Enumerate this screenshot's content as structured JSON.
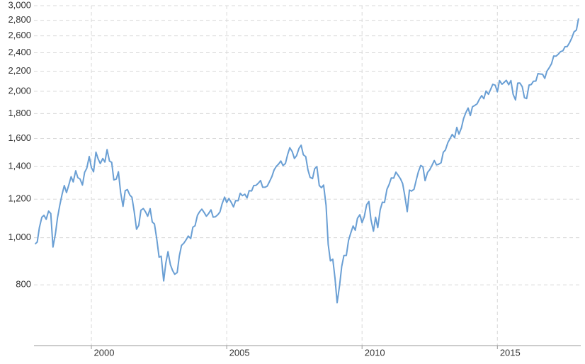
{
  "chart_data": {
    "type": "line",
    "log_scale": true,
    "grid": true,
    "xlim": [
      1997.88,
      2018.08
    ],
    "xticks": [
      2000,
      2005,
      2010,
      2015
    ],
    "ylim": [
      600,
      3000
    ],
    "yticks": [
      800,
      {
        "value": 1000,
        "label": "1,000"
      },
      {
        "value": 1200,
        "label": "1,200"
      },
      {
        "value": 1400,
        "label": "1,400"
      },
      {
        "value": 1600,
        "label": "1,600"
      },
      {
        "value": 1800,
        "label": "1,800"
      },
      {
        "value": 2000,
        "label": "2,000"
      },
      {
        "value": 2200,
        "label": "2,200"
      },
      {
        "value": 2400,
        "label": "2,400"
      },
      {
        "value": 2600,
        "label": "2,600"
      },
      {
        "value": 2800,
        "label": "2,800"
      },
      {
        "value": 3000,
        "label": "3,000"
      }
    ],
    "x": [
      1997.92,
      1998,
      1998.08,
      1998.17,
      1998.25,
      1998.33,
      1998.42,
      1998.5,
      1998.58,
      1998.67,
      1998.75,
      1998.83,
      1998.92,
      1999,
      1999.08,
      1999.17,
      1999.25,
      1999.33,
      1999.42,
      1999.5,
      1999.58,
      1999.67,
      1999.75,
      1999.83,
      1999.92,
      2000,
      2000.08,
      2000.17,
      2000.25,
      2000.33,
      2000.42,
      2000.5,
      2000.58,
      2000.67,
      2000.75,
      2000.83,
      2000.92,
      2001,
      2001.08,
      2001.17,
      2001.25,
      2001.33,
      2001.42,
      2001.5,
      2001.58,
      2001.67,
      2001.75,
      2001.83,
      2001.92,
      2002,
      2002.08,
      2002.17,
      2002.25,
      2002.33,
      2002.42,
      2002.5,
      2002.58,
      2002.67,
      2002.75,
      2002.83,
      2002.92,
      2003,
      2003.08,
      2003.17,
      2003.25,
      2003.33,
      2003.42,
      2003.5,
      2003.58,
      2003.67,
      2003.75,
      2003.83,
      2003.92,
      2004,
      2004.08,
      2004.17,
      2004.25,
      2004.33,
      2004.42,
      2004.5,
      2004.58,
      2004.67,
      2004.75,
      2004.83,
      2004.92,
      2005,
      2005.08,
      2005.17,
      2005.25,
      2005.33,
      2005.42,
      2005.5,
      2005.58,
      2005.67,
      2005.75,
      2005.83,
      2005.92,
      2006,
      2006.08,
      2006.17,
      2006.25,
      2006.33,
      2006.42,
      2006.5,
      2006.58,
      2006.67,
      2006.75,
      2006.83,
      2006.92,
      2007,
      2007.08,
      2007.17,
      2007.25,
      2007.33,
      2007.42,
      2007.5,
      2007.58,
      2007.67,
      2007.75,
      2007.83,
      2007.92,
      2008,
      2008.08,
      2008.17,
      2008.25,
      2008.33,
      2008.42,
      2008.5,
      2008.58,
      2008.67,
      2008.75,
      2008.83,
      2008.92,
      2009,
      2009.08,
      2009.17,
      2009.25,
      2009.33,
      2009.42,
      2009.5,
      2009.58,
      2009.67,
      2009.75,
      2009.83,
      2009.92,
      2010,
      2010.08,
      2010.17,
      2010.25,
      2010.33,
      2010.42,
      2010.5,
      2010.58,
      2010.67,
      2010.75,
      2010.83,
      2010.92,
      2011,
      2011.08,
      2011.17,
      2011.25,
      2011.33,
      2011.42,
      2011.5,
      2011.58,
      2011.67,
      2011.75,
      2011.83,
      2011.92,
      2012,
      2012.08,
      2012.17,
      2012.25,
      2012.33,
      2012.42,
      2012.5,
      2012.58,
      2012.67,
      2012.75,
      2012.83,
      2012.92,
      2013,
      2013.08,
      2013.17,
      2013.25,
      2013.33,
      2013.42,
      2013.5,
      2013.58,
      2013.67,
      2013.75,
      2013.83,
      2013.92,
      2014,
      2014.08,
      2014.17,
      2014.25,
      2014.33,
      2014.42,
      2014.5,
      2014.58,
      2014.67,
      2014.75,
      2014.83,
      2014.92,
      2015,
      2015.08,
      2015.17,
      2015.25,
      2015.33,
      2015.42,
      2015.5,
      2015.58,
      2015.67,
      2015.75,
      2015.83,
      2015.92,
      2016,
      2016.08,
      2016.17,
      2016.25,
      2016.33,
      2016.42,
      2016.5,
      2016.58,
      2016.67,
      2016.75,
      2016.83,
      2016.92,
      2017,
      2017.08,
      2017.17,
      2017.25,
      2017.33,
      2017.42,
      2017.5,
      2017.58,
      2017.67,
      2017.75,
      2017.83,
      2017.92,
      2018
    ],
    "series": [
      {
        "color": "#6a9fd4",
        "values": [
          970,
          980,
          1049,
          1102,
          1112,
          1091,
          1134,
          1121,
          957,
          1017,
          1099,
          1164,
          1229,
          1280,
          1238,
          1286,
          1335,
          1302,
          1373,
          1329,
          1320,
          1283,
          1363,
          1389,
          1469,
          1394,
          1366,
          1499,
          1452,
          1421,
          1455,
          1431,
          1518,
          1437,
          1429,
          1315,
          1320,
          1366,
          1240,
          1160,
          1249,
          1256,
          1224,
          1211,
          1134,
          1041,
          1060,
          1139,
          1148,
          1130,
          1107,
          1147,
          1077,
          1067,
          990,
          912,
          916,
          815,
          886,
          936,
          880,
          856,
          841,
          848,
          917,
          964,
          975,
          990,
          1008,
          996,
          1051,
          1058,
          1112,
          1131,
          1145,
          1126,
          1107,
          1121,
          1141,
          1102,
          1104,
          1115,
          1130,
          1174,
          1212,
          1181,
          1204,
          1181,
          1157,
          1192,
          1191,
          1234,
          1220,
          1229,
          1207,
          1249,
          1248,
          1280,
          1281,
          1295,
          1311,
          1270,
          1270,
          1277,
          1304,
          1336,
          1378,
          1401,
          1418,
          1438,
          1407,
          1421,
          1482,
          1531,
          1503,
          1455,
          1474,
          1527,
          1549,
          1481,
          1468,
          1379,
          1331,
          1323,
          1386,
          1400,
          1280,
          1267,
          1283,
          1165,
          969,
          896,
          903,
          826,
          735,
          798,
          873,
          919,
          919,
          987,
          1021,
          1057,
          1036,
          1096,
          1115,
          1074,
          1104,
          1169,
          1187,
          1089,
          1031,
          1102,
          1049,
          1141,
          1183,
          1181,
          1258,
          1286,
          1327,
          1326,
          1364,
          1345,
          1321,
          1292,
          1219,
          1131,
          1253,
          1247,
          1258,
          1312,
          1366,
          1408,
          1398,
          1310,
          1362,
          1379,
          1407,
          1441,
          1412,
          1416,
          1426,
          1498,
          1515,
          1569,
          1598,
          1631,
          1606,
          1686,
          1633,
          1682,
          1757,
          1806,
          1848,
          1783,
          1859,
          1872,
          1884,
          1924,
          1960,
          1931,
          2003,
          1972,
          2018,
          2068,
          2059,
          1995,
          2105,
          2068,
          2086,
          2107,
          2063,
          2104,
          1972,
          1920,
          2079,
          2080,
          2044,
          1940,
          1932,
          2060,
          2065,
          2097,
          2099,
          2174,
          2171,
          2168,
          2126,
          2199,
          2239,
          2279,
          2364,
          2363,
          2384,
          2412,
          2423,
          2470,
          2472,
          2519,
          2575,
          2648,
          2674,
          2824
        ]
      }
    ]
  }
}
